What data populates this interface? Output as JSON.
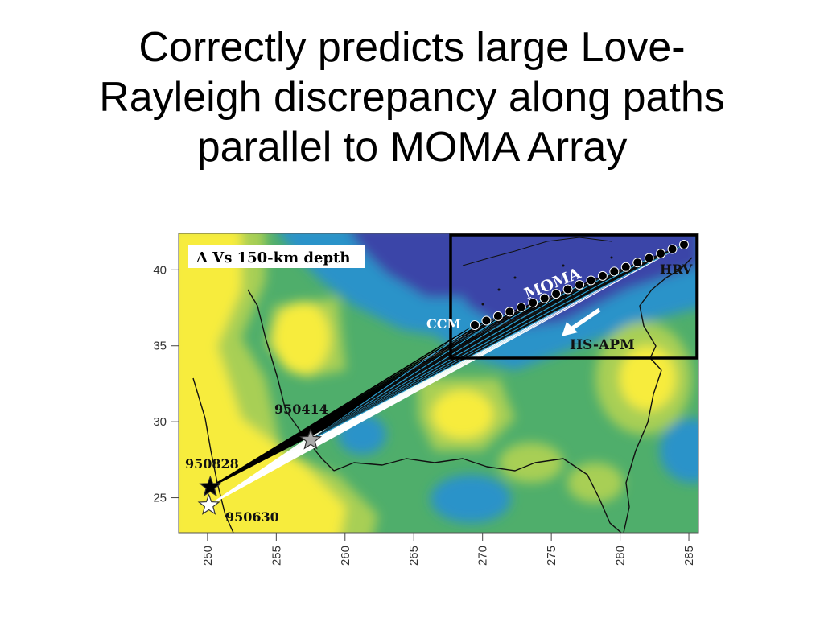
{
  "slide": {
    "title": "Correctly predicts large Love-\nRayleigh discrepancy along paths\nparallel to MOMA Array"
  },
  "map": {
    "legend_label": "Δ Vs 150-km depth",
    "array_label": "MOMA",
    "model_label": "HS-APM",
    "station_start_label": "CCM",
    "station_end_label": "HRV",
    "events": [
      {
        "id": "950414",
        "lon": 257.5,
        "lat": 28.8,
        "color": "#a9a9a9"
      },
      {
        "id": "950828",
        "lon": 250.2,
        "lat": 25.7,
        "color": "#000000"
      },
      {
        "id": "950630",
        "lon": 250.1,
        "lat": 24.5,
        "color": "#ffffff"
      }
    ],
    "lon_ticks": [
      "250",
      "255",
      "260",
      "265",
      "270",
      "275",
      "280",
      "285"
    ],
    "lat_ticks": [
      "25",
      "30",
      "35",
      "40"
    ],
    "lon_range": [
      247.9,
      285.7
    ],
    "lat_range": [
      22.7,
      42.4
    ],
    "colors": {
      "fast": "#3a45a8",
      "medium_fast": "#2b93c9",
      "neutral": "#4fae6b",
      "medium_slow": "#a8cf55",
      "slow": "#f7ec3c",
      "box": "#000000"
    }
  }
}
